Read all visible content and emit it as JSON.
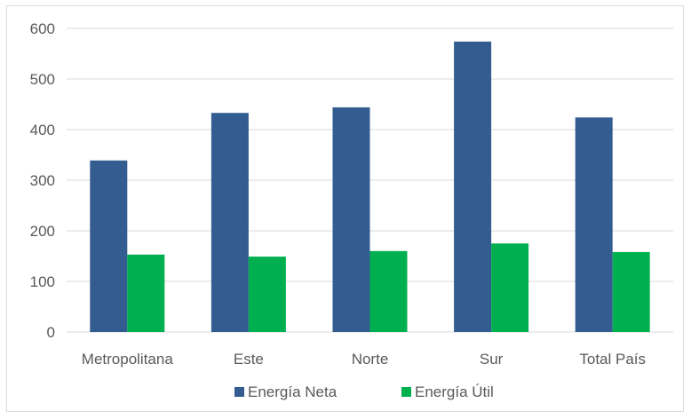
{
  "chart_data": {
    "type": "bar",
    "categories": [
      "Metropolitana",
      "Este",
      "Norte",
      "Sur",
      "Total País"
    ],
    "series": [
      {
        "name": "Energía Neta",
        "color": "#335c91",
        "values": [
          339,
          433,
          444,
          574,
          424
        ]
      },
      {
        "name": "Energía Útil",
        "color": "#00b050",
        "values": [
          153,
          149,
          160,
          175,
          158
        ]
      }
    ],
    "ylim": [
      0,
      600
    ],
    "yticks": [
      0,
      100,
      200,
      300,
      400,
      500,
      600
    ],
    "grid": true,
    "legend_position": "bottom",
    "title": "",
    "xlabel": "",
    "ylabel": ""
  }
}
